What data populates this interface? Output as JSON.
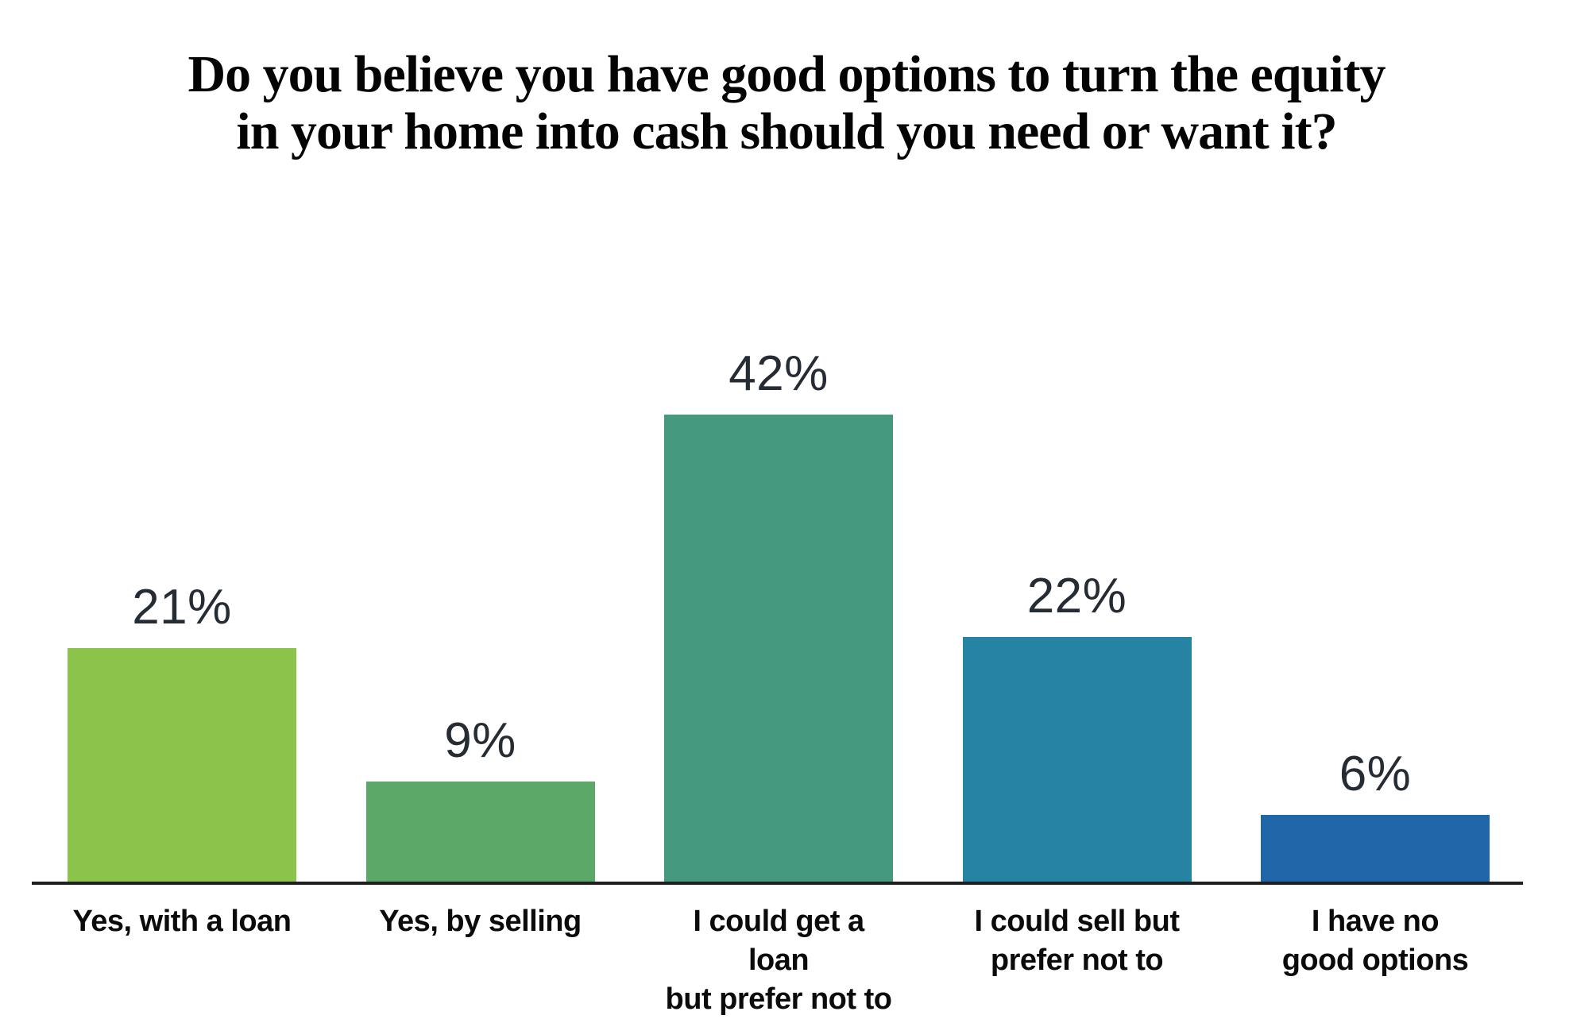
{
  "chart_data": {
    "type": "bar",
    "title": "Do you believe you have good options to turn the equity in your home into cash should you need or want it?",
    "title_lines": [
      "Do you believe you have good options to turn the equity",
      "in your home into cash should you need or want it?"
    ],
    "categories": [
      "Yes, with a loan",
      "Yes, by selling",
      "I could get a loan but prefer not to",
      "I could sell but prefer not to",
      "I have no good options"
    ],
    "category_lines": [
      [
        "Yes, with a loan"
      ],
      [
        "Yes, by selling"
      ],
      [
        "I could get a loan",
        "but prefer not to"
      ],
      [
        "I could sell but",
        "prefer not to"
      ],
      [
        "I have no",
        "good options"
      ]
    ],
    "values": [
      21,
      9,
      42,
      22,
      6
    ],
    "value_labels": [
      "21%",
      "9%",
      "42%",
      "22%",
      "6%"
    ],
    "bar_colors": [
      "#8CC44B",
      "#5CA868",
      "#45997F",
      "#2583A4",
      "#2067A9"
    ],
    "value_label_color": "#262C34",
    "category_label_color": "#0B0B0B",
    "title_color": "#040404",
    "axis_color": "#1F1F1F",
    "background": "#FFFFFF",
    "grid": false,
    "legend": false,
    "y_axis_visible": false,
    "xlabel": "",
    "ylabel": ""
  }
}
